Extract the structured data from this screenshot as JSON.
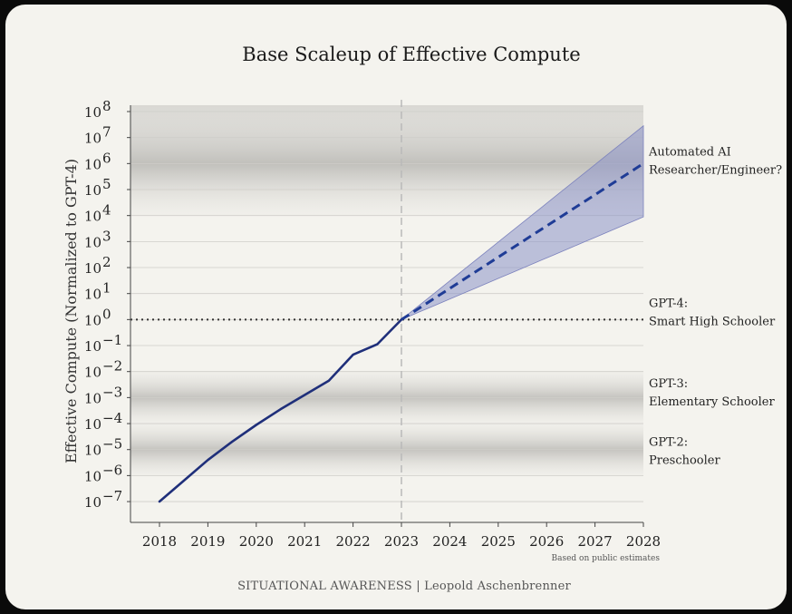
{
  "chart_data": {
    "type": "line",
    "title": "Base Scaleup of Effective Compute",
    "xlabel": "",
    "ylabel": "Effective Compute (Normalized to GPT-4)",
    "xlim": [
      2018,
      2028
    ],
    "ylim_log10": [
      -7,
      8
    ],
    "yscale": "log",
    "x_ticks": [
      "2018",
      "2019",
      "2020",
      "2021",
      "2022",
      "2023",
      "2024",
      "2025",
      "2026",
      "2027",
      "2028"
    ],
    "y_ticks": [
      {
        "base": "10",
        "exp": "8"
      },
      {
        "base": "10",
        "exp": "7"
      },
      {
        "base": "10",
        "exp": "6"
      },
      {
        "base": "10",
        "exp": "5"
      },
      {
        "base": "10",
        "exp": "4"
      },
      {
        "base": "10",
        "exp": "3"
      },
      {
        "base": "10",
        "exp": "2"
      },
      {
        "base": "10",
        "exp": "1"
      },
      {
        "base": "10",
        "exp": "0"
      },
      {
        "base": "10",
        "exp": "−1"
      },
      {
        "base": "10",
        "exp": "−2"
      },
      {
        "base": "10",
        "exp": "−3"
      },
      {
        "base": "10",
        "exp": "−4"
      },
      {
        "base": "10",
        "exp": "−5"
      },
      {
        "base": "10",
        "exp": "−6"
      },
      {
        "base": "10",
        "exp": "−7"
      }
    ],
    "historical": {
      "x": [
        2018,
        2018.5,
        2019,
        2019.5,
        2020,
        2020.5,
        2021,
        2021.5,
        2022,
        2022.5,
        2023
      ],
      "log10": [
        -7.0,
        -6.2,
        -5.4,
        -4.7,
        -4.05,
        -3.45,
        -2.9,
        -2.35,
        -1.35,
        -0.95,
        0.0
      ],
      "color": "#1f2f7a"
    },
    "projection": {
      "x": [
        2023,
        2028
      ],
      "log10": [
        0.0,
        6.0
      ],
      "color": "#1f3c96",
      "dashed": true
    },
    "uncertainty_band": {
      "x": [
        2023,
        2028
      ],
      "upper_log10": [
        0.0,
        7.45
      ],
      "lower_log10": [
        0.0,
        3.95
      ],
      "color": "#8d93c9"
    },
    "reference_lines": [
      {
        "x": 2023,
        "style": "dashed",
        "color": "#b9b9b9"
      },
      {
        "y_log10": 0,
        "style": "dotted",
        "color": "#333333"
      }
    ],
    "shaded_bands": [
      {
        "center_log10": 6.0,
        "halfwidth": 2.0
      },
      {
        "center_log10": -3.0,
        "halfwidth": 1.0
      },
      {
        "center_log10": -5.0,
        "halfwidth": 1.0
      }
    ],
    "annotations": [
      {
        "lines": [
          "Automated AI",
          "Researcher/Engineer?"
        ]
      },
      {
        "lines": [
          "GPT-4:",
          "Smart High Schooler"
        ]
      },
      {
        "lines": [
          "GPT-3:",
          "Elementary Schooler"
        ]
      },
      {
        "lines": [
          "GPT-2:",
          "Preschooler"
        ]
      }
    ],
    "source_note": "Based on public estimates"
  },
  "footer": "SITUATIONAL AWARENESS | Leopold Aschenbrenner"
}
